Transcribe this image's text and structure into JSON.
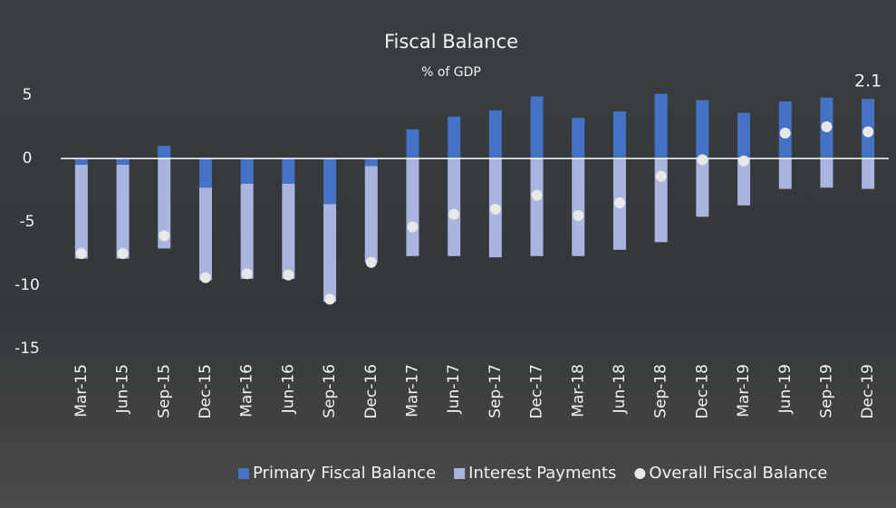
{
  "chart_data": {
    "type": "stacked_bar_scatter",
    "title": "Fiscal Balance",
    "subtitle": "% of GDP",
    "categories": [
      "Mar-15",
      "Jun-15",
      "Sep-15",
      "Dec-15",
      "Mar-16",
      "Jun-16",
      "Sep-16",
      "Dec-16",
      "Mar-17",
      "Jun-17",
      "Sep-17",
      "Dec-17",
      "Mar-18",
      "Jun-18",
      "Sep-18",
      "Dec-18",
      "Mar-19",
      "Jun-19",
      "Sep-19",
      "Dec-19"
    ],
    "series": [
      {
        "name": "Primary Fiscal Balance",
        "color": "#4472c4",
        "kind": "bar",
        "values": [
          -0.5,
          -0.5,
          1.0,
          -2.3,
          -2.0,
          -2.0,
          -3.6,
          -0.6,
          2.3,
          3.3,
          3.8,
          4.9,
          3.2,
          3.7,
          5.1,
          4.6,
          3.6,
          4.5,
          4.8,
          4.7
        ]
      },
      {
        "name": "Interest Payments",
        "color": "#a9b5de",
        "kind": "bar",
        "values": [
          -7.4,
          -7.4,
          -7.1,
          -7.3,
          -7.5,
          -7.5,
          -7.7,
          -7.6,
          -7.7,
          -7.7,
          -7.8,
          -7.7,
          -7.7,
          -7.2,
          -6.6,
          -4.6,
          -3.7,
          -2.4,
          -2.3,
          -2.4
        ]
      },
      {
        "name": "Overall Fiscal Balance",
        "color": "#e8e8e8",
        "kind": "point",
        "values": [
          -7.5,
          -7.5,
          -6.1,
          -9.4,
          -9.1,
          -9.2,
          -11.1,
          -8.2,
          -5.4,
          -4.4,
          -4.0,
          -2.9,
          -4.5,
          -3.5,
          -1.4,
          -0.1,
          -0.2,
          2.0,
          2.5,
          2.1
        ]
      }
    ],
    "ylim": [
      -15,
      6
    ],
    "yticks": [
      5,
      0,
      -5,
      -10,
      -15
    ],
    "grid": false,
    "legend": "bottom"
  }
}
